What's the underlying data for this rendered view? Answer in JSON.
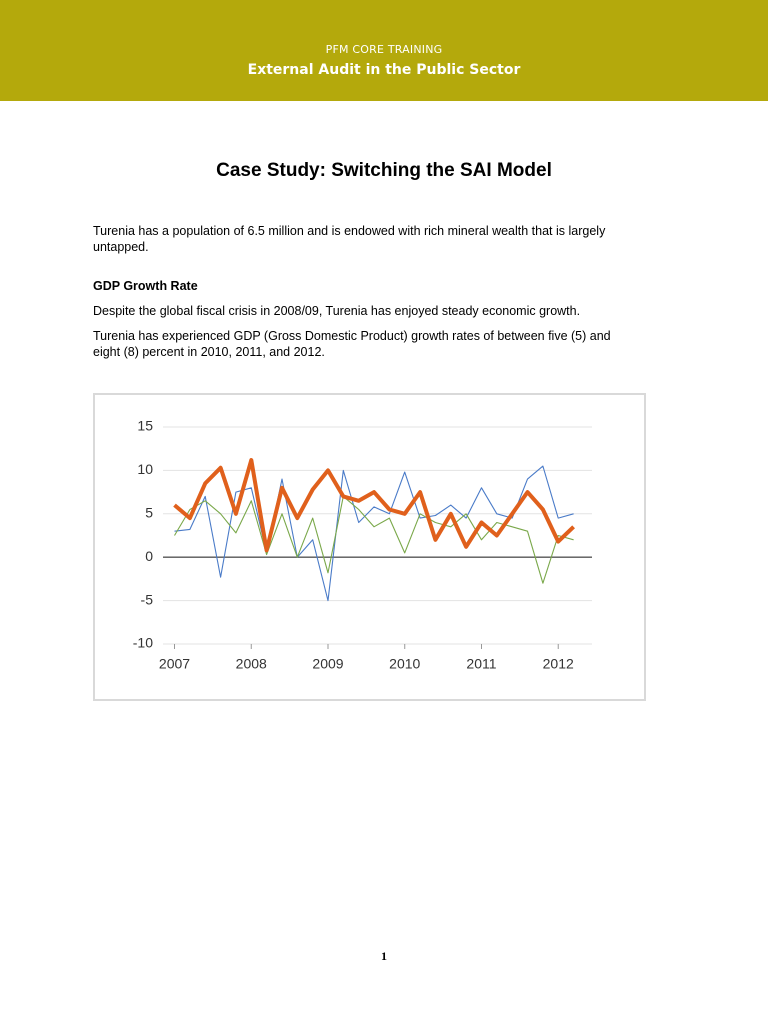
{
  "header": {
    "subtitle": "PFM CORE TRAINING",
    "title": "External Audit in the Public Sector"
  },
  "document": {
    "title": "Case Study: Switching the SAI Model",
    "intro": "Turenia has a population of 6.5 million and is endowed with rich mineral wealth that is largely untapped.",
    "section_heading": "GDP Growth Rate",
    "paragraphs": [
      "Despite the global fiscal crisis in 2008/09, Turenia has enjoyed steady economic growth.",
      "Turenia has experienced GDP (Gross Domestic Product) growth rates of between five (5) and eight (8) percent in 2010, 2011, and 2012."
    ]
  },
  "chart_data": {
    "type": "line",
    "x": [
      2007.0,
      2007.2,
      2007.4,
      2007.6,
      2007.8,
      2008.0,
      2008.2,
      2008.4,
      2008.6,
      2008.8,
      2009.0,
      2009.2,
      2009.4,
      2009.6,
      2009.8,
      2010.0,
      2010.2,
      2010.4,
      2010.6,
      2010.8,
      2011.0,
      2011.2,
      2011.4,
      2011.6,
      2011.8,
      2012.0,
      2012.2
    ],
    "series": [
      {
        "color": "#4a7bc8",
        "values": [
          3,
          3.2,
          7,
          -2.3,
          7.5,
          8,
          0.5,
          9,
          0,
          2,
          -5,
          10,
          4,
          5.8,
          5,
          9.8,
          4.5,
          4.8,
          6,
          4.5,
          8,
          5,
          4.5,
          9,
          10.5,
          4.5,
          5
        ]
      },
      {
        "color": "#7aa84a",
        "values": [
          2.5,
          5.5,
          6.5,
          5,
          2.8,
          6.5,
          0.3,
          5,
          0,
          4.5,
          -1.8,
          7,
          5.5,
          3.5,
          4.5,
          0.5,
          5,
          4,
          3.5,
          5,
          2,
          4,
          3.5,
          3,
          -3,
          2.5,
          2
        ]
      },
      {
        "color": "#e0601c",
        "values": [
          6,
          4.5,
          8.5,
          10.3,
          5,
          11.2,
          0.8,
          8,
          4.5,
          7.8,
          10,
          7,
          6.5,
          7.5,
          5.5,
          5,
          7.5,
          2,
          5,
          1.2,
          4,
          2.5,
          5,
          7.5,
          5.5,
          1.8,
          3.5
        ]
      }
    ],
    "xlim": [
      2006.85,
      2012.44
    ],
    "xticks": [
      2007,
      2008,
      2009,
      2010,
      2011,
      2012
    ],
    "ylim": [
      -10,
      15
    ],
    "yticks": [
      -10,
      -5,
      0,
      5,
      10,
      15
    ],
    "grid": true
  },
  "footer": {
    "page_number": "1"
  }
}
